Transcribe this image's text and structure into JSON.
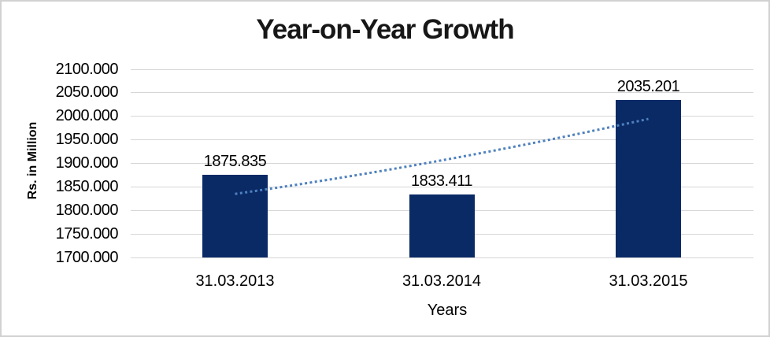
{
  "chart_data": {
    "type": "bar",
    "title": "Year-on-Year Growth",
    "ylabel": "Rs. in Million",
    "xlabel": "Years",
    "categories": [
      "31.03.2013",
      "31.03.2014",
      "31.03.2015"
    ],
    "values": [
      1875.835,
      1833.411,
      2035.201
    ],
    "data_labels": [
      "1875.835",
      "1833.411",
      "2035.201"
    ],
    "yticks": [
      "2100.000",
      "2050.000",
      "2000.000",
      "1950.000",
      "1900.000",
      "1850.000",
      "1800.000",
      "1750.000",
      "1700.000"
    ],
    "ylim": [
      1700,
      2100
    ],
    "ytick_step": 50,
    "grid": true,
    "legend": "none",
    "trendline": {
      "type": "linear",
      "style": "dotted"
    },
    "colors": {
      "bar": "#0a2a66",
      "trendline": "#4f81bd",
      "gridline": "#d6d6d6",
      "chart_border": "#d1d1d1",
      "title_text": "#171717",
      "axis_text": "#000000",
      "background": "#ffffff"
    }
  }
}
